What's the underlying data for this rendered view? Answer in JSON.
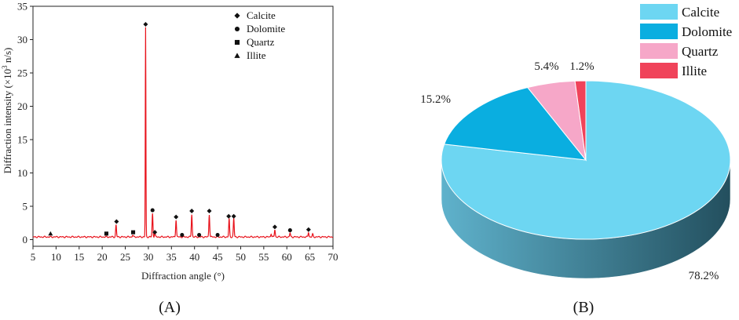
{
  "chart_data": [
    {
      "type": "line",
      "panel_label": "(A)",
      "xlabel": "Diffraction angle (°)",
      "ylabel_main": "Diffraction intensity (×10",
      "ylabel_sup": "3",
      "ylabel_tail": " n/s)",
      "xlim": [
        5,
        70
      ],
      "ylim": [
        -1,
        35
      ],
      "xticks": [
        "5",
        "10",
        "15",
        "20",
        "25",
        "30",
        "35",
        "40",
        "45",
        "50",
        "55",
        "60",
        "65",
        "70"
      ],
      "yticks": [
        "0",
        "5",
        "10",
        "15",
        "20",
        "25",
        "30",
        "35"
      ],
      "line_color": "#e8121b",
      "baseline": 0.4,
      "peaks": [
        {
          "x": 23.0,
          "y": 2.2
        },
        {
          "x": 26.6,
          "y": 0.7
        },
        {
          "x": 29.4,
          "y": 31.8
        },
        {
          "x": 30.9,
          "y": 3.9
        },
        {
          "x": 31.4,
          "y": 1.0
        },
        {
          "x": 36.0,
          "y": 3.0
        },
        {
          "x": 39.4,
          "y": 3.8
        },
        {
          "x": 43.2,
          "y": 3.8
        },
        {
          "x": 47.5,
          "y": 3.1
        },
        {
          "x": 48.5,
          "y": 3.2
        },
        {
          "x": 56.6,
          "y": 0.9
        },
        {
          "x": 57.4,
          "y": 1.5
        },
        {
          "x": 60.7,
          "y": 1.0
        },
        {
          "x": 64.7,
          "y": 1.1
        },
        {
          "x": 65.6,
          "y": 0.8
        }
      ],
      "markers": [
        {
          "x": 8.8,
          "y": 0.9,
          "shape": "triangle"
        },
        {
          "x": 20.9,
          "y": 0.9,
          "shape": "square"
        },
        {
          "x": 23.1,
          "y": 2.7,
          "shape": "diamond"
        },
        {
          "x": 26.7,
          "y": 1.1,
          "shape": "square"
        },
        {
          "x": 29.4,
          "y": 32.3,
          "shape": "diamond"
        },
        {
          "x": 30.9,
          "y": 4.4,
          "shape": "circle"
        },
        {
          "x": 31.4,
          "y": 1.1,
          "shape": "diamond"
        },
        {
          "x": 36.0,
          "y": 3.4,
          "shape": "diamond"
        },
        {
          "x": 37.3,
          "y": 0.7,
          "shape": "circle"
        },
        {
          "x": 39.4,
          "y": 4.3,
          "shape": "diamond"
        },
        {
          "x": 41.0,
          "y": 0.7,
          "shape": "circle"
        },
        {
          "x": 43.2,
          "y": 4.3,
          "shape": "diamond"
        },
        {
          "x": 45.0,
          "y": 0.7,
          "shape": "circle"
        },
        {
          "x": 47.4,
          "y": 3.5,
          "shape": "diamond"
        },
        {
          "x": 48.5,
          "y": 3.5,
          "shape": "diamond"
        },
        {
          "x": 57.4,
          "y": 1.9,
          "shape": "diamond"
        },
        {
          "x": 60.7,
          "y": 1.4,
          "shape": "circle"
        },
        {
          "x": 64.7,
          "y": 1.5,
          "shape": "diamond"
        }
      ],
      "legend": [
        {
          "shape": "diamond",
          "label": "Calcite"
        },
        {
          "shape": "circle",
          "label": "Dolomite"
        },
        {
          "shape": "square",
          "label": "Quartz"
        },
        {
          "shape": "triangle",
          "label": "Illite"
        }
      ],
      "legend_position": "top-right"
    },
    {
      "type": "pie",
      "panel_label": "(B)",
      "style": "3d",
      "slices": [
        {
          "label": "Calcite",
          "value": 78.2,
          "pct_label": "78.2%",
          "color": "#6dd6f2",
          "side_dark": "#234f5e",
          "side_light": "#5fb2cc"
        },
        {
          "label": "Dolomite",
          "value": 15.2,
          "pct_label": "15.2%",
          "color": "#0aaee0",
          "side_dark": "#0a6f8f",
          "side_light": "#0aaee0"
        },
        {
          "label": "Quartz",
          "value": 5.4,
          "pct_label": "5.4%",
          "color": "#f6a7c8",
          "side_dark": "#b0708a",
          "side_light": "#f6a7c8"
        },
        {
          "label": "Illite",
          "value": 1.2,
          "pct_label": "1.2%",
          "color": "#f0435a",
          "side_dark": "#9c2232",
          "side_light": "#f0435a"
        }
      ],
      "legend_position": "top-right"
    }
  ]
}
